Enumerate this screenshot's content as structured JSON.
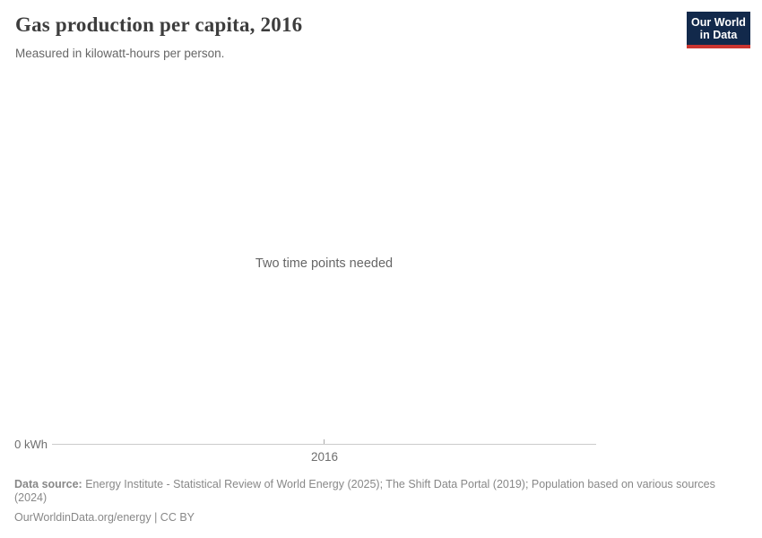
{
  "header": {
    "title": "Gas production per capita, 2016",
    "subtitle": "Measured in kilowatt-hours per person."
  },
  "logo": {
    "line1": "Our World",
    "line2": "in Data",
    "bg_color": "#12294b",
    "stripe_color": "#cb3530",
    "text_color": "#ffffff"
  },
  "chart": {
    "empty_message": "Two time points needed",
    "y_axis_tick_label": "0 kWh",
    "x_axis_tick_label": "2016",
    "axis_line_color": "#cccccc"
  },
  "chart_data": {
    "type": "line",
    "title": "Gas production per capita, 2016",
    "subtitle": "Measured in kilowatt-hours per person.",
    "unit": "kilowatt-hours per person",
    "x_ticks": [
      "2016"
    ],
    "y_ticks": [
      "0 kWh"
    ],
    "series": [],
    "annotations": [
      "Two time points needed"
    ],
    "legend": "none",
    "grid": "off"
  },
  "footer": {
    "source_label": "Data source:",
    "source_text": " Energy Institute - Statistical Review of World Energy (2025); The Shift Data Portal (2019); Population based on various sources (2024)",
    "citation": "OurWorldinData.org/energy | CC BY"
  }
}
